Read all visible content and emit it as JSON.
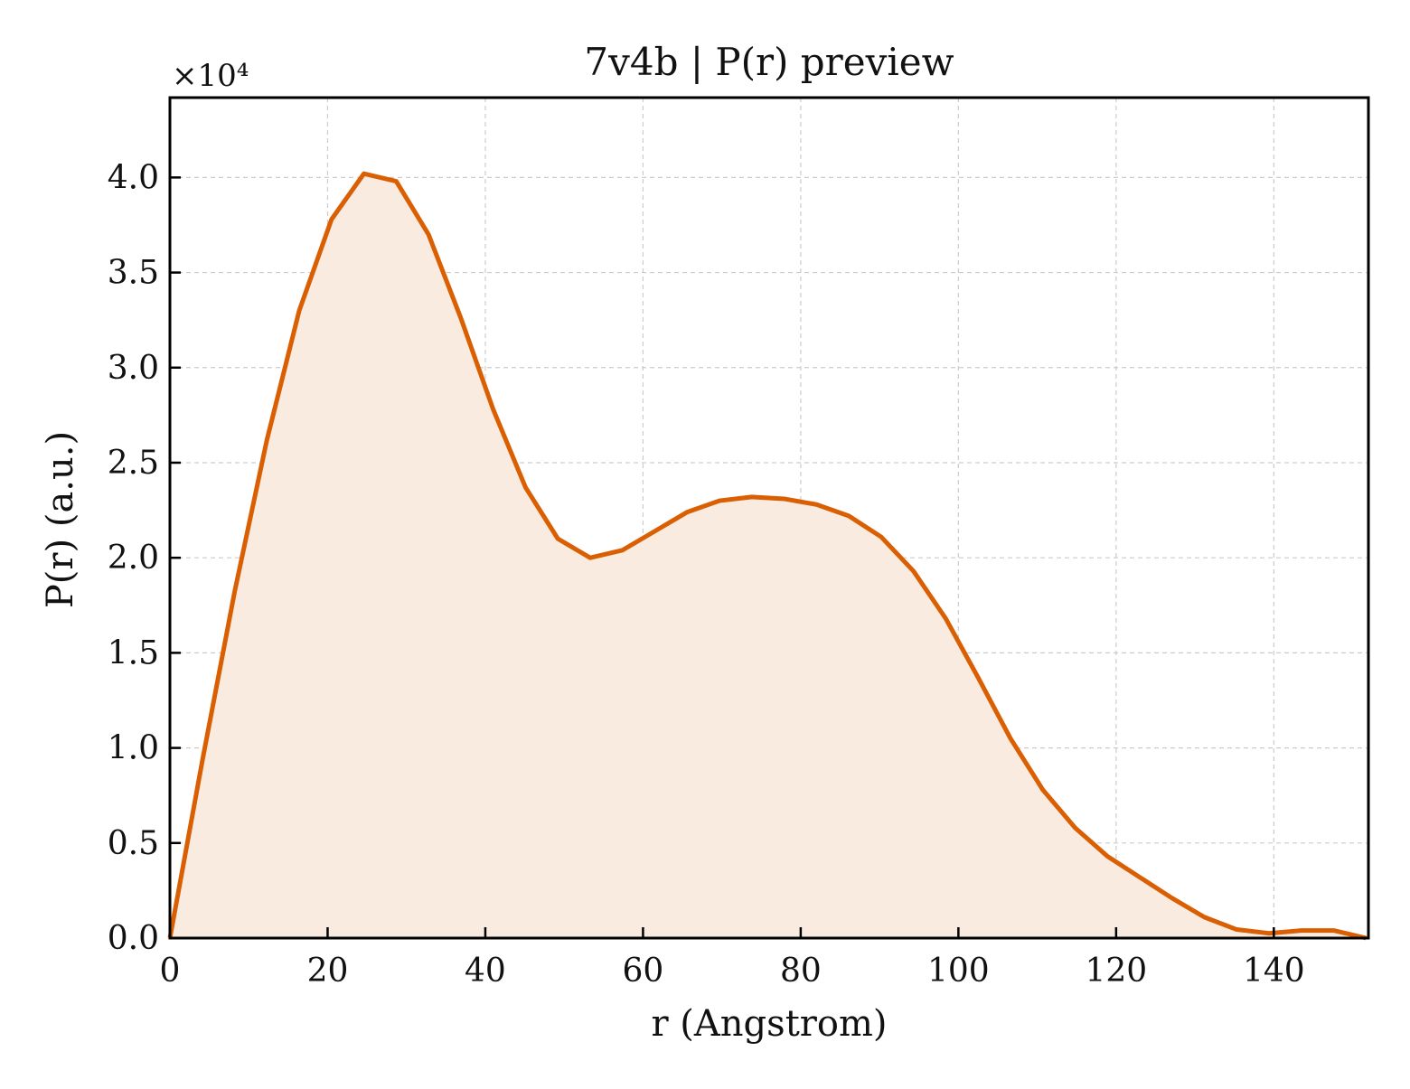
{
  "chart_data": {
    "type": "area",
    "title": "7v4b | P(r) preview",
    "xlabel": "r (Angstrom)",
    "ylabel": "P(r) (a.u.)",
    "y_scale_label": "×10⁴",
    "y_multiplier": 10000,
    "xlim": [
      0,
      152
    ],
    "ylim": [
      0,
      4.42
    ],
    "x_ticks": [
      0,
      20,
      40,
      60,
      80,
      100,
      120,
      140
    ],
    "x_tick_labels": [
      "0",
      "20",
      "40",
      "60",
      "80",
      "100",
      "120",
      "140"
    ],
    "y_ticks": [
      0,
      0.5,
      1.0,
      1.5,
      2.0,
      2.5,
      3.0,
      3.5,
      4.0
    ],
    "y_tick_labels": [
      "0.0",
      "0.5",
      "1.0",
      "1.5",
      "2.0",
      "2.5",
      "3.0",
      "3.5",
      "4.0"
    ],
    "grid": true,
    "series": [
      {
        "x": [
          0,
          4.1,
          8.2,
          12.3,
          16.4,
          20.5,
          24.6,
          28.7,
          32.8,
          36.9,
          41.0,
          45.1,
          49.2,
          53.3,
          57.4,
          61.5,
          65.6,
          69.7,
          73.8,
          77.9,
          82.0,
          86.1,
          90.2,
          94.3,
          98.4,
          102.5,
          106.6,
          110.7,
          114.8,
          118.9,
          123.0,
          127.1,
          131.2,
          135.3,
          139.4,
          143.5,
          147.6,
          151.7
        ],
        "values": [
          0.0,
          0.93,
          1.82,
          2.62,
          3.3,
          3.78,
          4.02,
          3.98,
          3.7,
          3.26,
          2.78,
          2.37,
          2.1,
          2.0,
          2.04,
          2.14,
          2.24,
          2.3,
          2.32,
          2.31,
          2.28,
          2.22,
          2.11,
          1.93,
          1.68,
          1.37,
          1.05,
          0.78,
          0.58,
          0.43,
          0.32,
          0.21,
          0.11,
          0.045,
          0.025,
          0.04,
          0.04,
          0.0
        ],
        "color": "#d95f02",
        "fill_color": "#f9ebe0"
      }
    ],
    "grid_color": "#cccccc",
    "frame_color": "#000000"
  }
}
